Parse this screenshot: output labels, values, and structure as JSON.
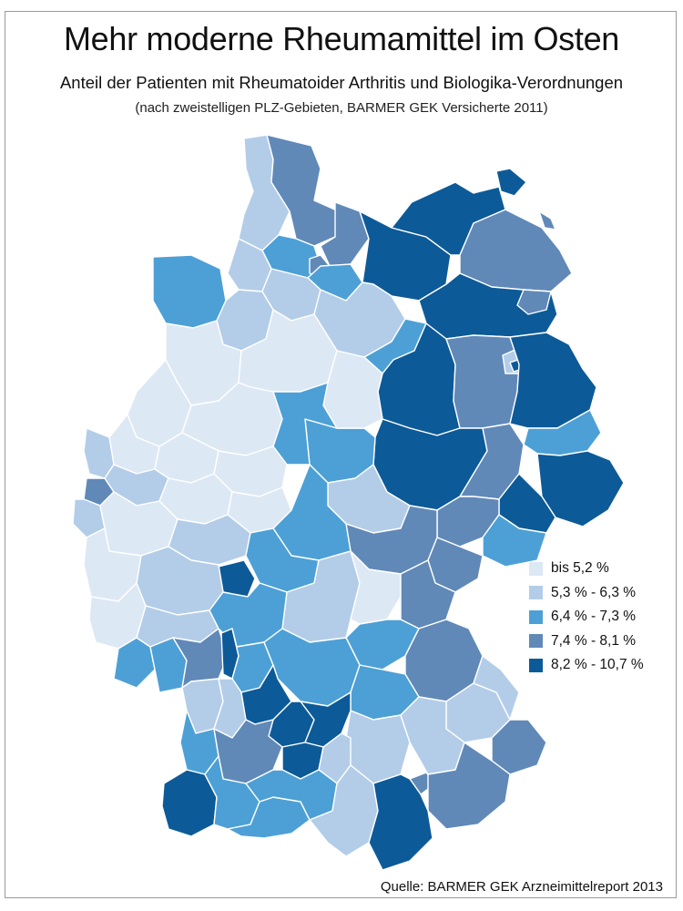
{
  "title": "Mehr moderne Rheumamittel im Osten",
  "subtitle": "Anteil der Patienten mit Rheumatoider Arthritis und Biologika-Verordnungen",
  "note": "(nach zweistelligen PLZ-Gebieten, BARMER GEK Versicherte 2011)",
  "legend": [
    {
      "label": "bis 5,2 %",
      "color": "#dde8f5"
    },
    {
      "label": "5,3 % - 6,3 %",
      "color": "#b3cde8"
    },
    {
      "label": "6,4 % - 7,3 %",
      "color": "#4da0d6"
    },
    {
      "label": "7,4 % - 8,1 %",
      "color": "#6089b8"
    },
    {
      "label": "8,2 % - 10,7 %",
      "color": "#0d5a98"
    }
  ],
  "source": "Quelle: BARMER GEK Arzneimittelreport 2013"
}
